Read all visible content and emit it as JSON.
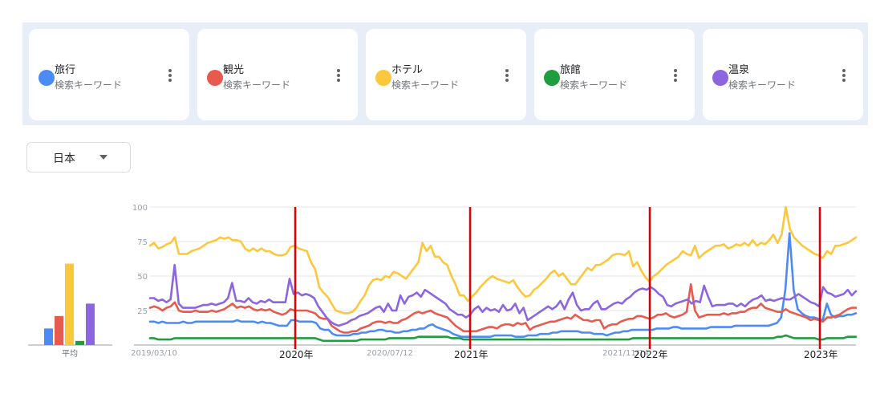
{
  "terms": [
    {
      "name": "旅行",
      "sub": "検索キーワード",
      "color": "#4c8bf5"
    },
    {
      "name": "観光",
      "sub": "検索キーワード",
      "color": "#e8594e"
    },
    {
      "name": "ホテル",
      "sub": "検索キーワード",
      "color": "#fbc83d"
    },
    {
      "name": "旅館",
      "sub": "検索キーワード",
      "color": "#1f9d3f"
    },
    {
      "name": "温泉",
      "sub": "検索キーワード",
      "color": "#8c65e0"
    }
  ],
  "region": {
    "label": "日本"
  },
  "chart_data": [
    {
      "type": "bar",
      "categories": [
        "旅行",
        "観光",
        "ホテル",
        "旅館",
        "温泉"
      ],
      "values": [
        12,
        21,
        59,
        3,
        30
      ],
      "xlabel": "平均",
      "ylim": [
        0,
        100
      ]
    },
    {
      "type": "line",
      "ylim": [
        0,
        100
      ],
      "yticks": [
        "100",
        "75",
        "50",
        "25"
      ],
      "xtick_labels": [
        "2019/03/10",
        "2020/07/12",
        "2021/11/14"
      ],
      "annotation_labels": [
        "2020年",
        "2021年",
        "2022年",
        "2023年"
      ],
      "annotation_color": "#e00000",
      "grid": true,
      "series": [
        {
          "name": "旅行",
          "color": "#4c8bf5",
          "values": [
            17,
            17,
            16,
            17,
            16,
            16,
            16,
            16,
            17,
            16,
            16,
            17,
            17,
            17,
            17,
            17,
            17,
            17,
            17,
            17,
            17,
            18,
            17,
            17,
            17,
            17,
            16,
            17,
            16,
            16,
            15,
            14,
            14,
            14,
            18,
            18,
            17,
            17,
            17,
            17,
            16,
            12,
            11,
            11,
            8,
            7,
            7,
            7,
            7,
            8,
            8,
            9,
            9,
            10,
            10,
            11,
            11,
            10,
            10,
            9,
            9,
            10,
            10,
            11,
            11,
            12,
            12,
            14,
            15,
            13,
            12,
            11,
            10,
            8,
            7,
            6,
            6,
            6,
            6,
            6,
            6,
            6,
            6,
            7,
            7,
            7,
            7,
            7,
            6,
            6,
            6,
            7,
            7,
            7,
            8,
            8,
            8,
            9,
            9,
            10,
            10,
            10,
            10,
            10,
            9,
            9,
            9,
            8,
            8,
            8,
            7,
            8,
            9,
            9,
            10,
            10,
            11,
            11,
            11,
            11,
            11,
            11,
            12,
            12,
            12,
            12,
            13,
            13,
            12,
            12,
            12,
            12,
            12,
            12,
            12,
            13,
            13,
            13,
            13,
            13,
            13,
            14,
            14,
            14,
            14,
            14,
            14,
            14,
            14,
            14,
            15,
            16,
            20,
            40,
            81,
            40,
            26,
            23,
            21,
            20,
            20,
            19,
            18,
            30,
            22,
            20,
            21,
            21,
            22,
            22,
            23
          ]
        },
        {
          "name": "観光",
          "color": "#e8594e",
          "values": [
            27,
            28,
            27,
            25,
            27,
            28,
            31,
            25,
            24,
            24,
            24,
            25,
            24,
            24,
            24,
            25,
            24,
            25,
            26,
            28,
            30,
            27,
            28,
            27,
            28,
            26,
            25,
            26,
            25,
            26,
            24,
            23,
            22,
            23,
            26,
            25,
            25,
            25,
            25,
            24,
            23,
            20,
            19,
            19,
            14,
            12,
            10,
            9,
            9,
            10,
            10,
            12,
            13,
            14,
            16,
            17,
            17,
            16,
            17,
            16,
            16,
            18,
            19,
            21,
            23,
            24,
            23,
            24,
            25,
            23,
            22,
            21,
            20,
            17,
            14,
            12,
            10,
            10,
            10,
            10,
            11,
            12,
            13,
            13,
            12,
            14,
            15,
            15,
            14,
            16,
            15,
            16,
            11,
            13,
            14,
            15,
            16,
            17,
            17,
            18,
            19,
            20,
            19,
            22,
            20,
            18,
            18,
            17,
            18,
            18,
            12,
            14,
            15,
            15,
            17,
            18,
            19,
            19,
            21,
            21,
            20,
            19,
            20,
            22,
            22,
            23,
            21,
            20,
            21,
            22,
            24,
            44,
            25,
            20,
            21,
            22,
            22,
            22,
            22,
            23,
            22,
            23,
            23,
            24,
            24,
            26,
            27,
            27,
            30,
            27,
            26,
            25,
            24,
            24,
            26,
            24,
            23,
            22,
            21,
            20,
            18,
            19,
            18,
            17,
            20,
            20,
            21,
            22,
            24,
            26,
            27,
            27
          ]
        },
        {
          "name": "ホテル",
          "color": "#fbc83d",
          "values": [
            72,
            74,
            70,
            71,
            73,
            74,
            78,
            66,
            66,
            66,
            68,
            69,
            70,
            72,
            74,
            75,
            76,
            78,
            77,
            78,
            76,
            76,
            75,
            70,
            68,
            70,
            68,
            70,
            68,
            68,
            66,
            65,
            65,
            66,
            71,
            72,
            70,
            69,
            68,
            60,
            55,
            42,
            38,
            35,
            30,
            25,
            24,
            23,
            23,
            24,
            27,
            32,
            36,
            43,
            47,
            48,
            47,
            50,
            49,
            53,
            52,
            50,
            48,
            52,
            56,
            60,
            74,
            68,
            72,
            64,
            64,
            60,
            58,
            50,
            44,
            36,
            36,
            32,
            35,
            38,
            42,
            45,
            48,
            50,
            48,
            47,
            46,
            45,
            47,
            42,
            38,
            35,
            36,
            40,
            42,
            45,
            48,
            52,
            54,
            50,
            52,
            48,
            44,
            44,
            48,
            52,
            56,
            54,
            58,
            58,
            60,
            62,
            65,
            66,
            66,
            65,
            68,
            57,
            60,
            54,
            49,
            46,
            50,
            52,
            55,
            58,
            60,
            62,
            64,
            68,
            66,
            65,
            72,
            63,
            66,
            68,
            70,
            72,
            72,
            73,
            70,
            71,
            73,
            72,
            74,
            72,
            76,
            72,
            74,
            73,
            76,
            80,
            74,
            80,
            100,
            84,
            78,
            75,
            72,
            70,
            68,
            66,
            65,
            63,
            68,
            66,
            72,
            72,
            73,
            74,
            76,
            78
          ]
        },
        {
          "name": "旅館",
          "color": "#1f9d3f",
          "values": [
            5,
            5,
            4,
            4,
            4,
            4,
            5,
            5,
            5,
            5,
            5,
            5,
            5,
            5,
            5,
            5,
            5,
            5,
            5,
            5,
            5,
            5,
            5,
            5,
            5,
            5,
            5,
            5,
            5,
            5,
            5,
            5,
            5,
            5,
            5,
            5,
            5,
            5,
            5,
            5,
            5,
            4,
            3,
            3,
            3,
            3,
            3,
            3,
            3,
            3,
            3,
            4,
            4,
            4,
            4,
            4,
            4,
            4,
            5,
            5,
            5,
            5,
            5,
            5,
            5,
            6,
            6,
            6,
            6,
            6,
            6,
            6,
            6,
            5,
            5,
            5,
            4,
            4,
            4,
            4,
            4,
            4,
            4,
            4,
            4,
            4,
            4,
            4,
            4,
            4,
            4,
            4,
            4,
            4,
            4,
            4,
            4,
            4,
            4,
            4,
            4,
            4,
            4,
            4,
            4,
            4,
            4,
            4,
            4,
            4,
            4,
            4,
            4,
            4,
            4,
            4,
            4,
            5,
            5,
            5,
            5,
            5,
            5,
            5,
            5,
            5,
            5,
            5,
            5,
            5,
            5,
            5,
            5,
            5,
            5,
            5,
            5,
            5,
            5,
            5,
            5,
            5,
            5,
            5,
            5,
            5,
            5,
            5,
            5,
            5,
            5,
            5,
            6,
            6,
            7,
            6,
            5,
            5,
            5,
            5,
            5,
            5,
            4,
            4,
            5,
            5,
            5,
            5,
            5,
            6,
            6,
            6
          ]
        },
        {
          "name": "温泉",
          "color": "#8c65e0",
          "values": [
            34,
            34,
            32,
            33,
            31,
            33,
            58,
            30,
            27,
            27,
            27,
            27,
            28,
            29,
            29,
            30,
            29,
            30,
            31,
            34,
            45,
            32,
            32,
            31,
            34,
            31,
            30,
            32,
            31,
            33,
            31,
            31,
            31,
            31,
            48,
            37,
            38,
            36,
            37,
            36,
            34,
            28,
            24,
            20,
            17,
            15,
            14,
            15,
            16,
            18,
            19,
            21,
            22,
            23,
            25,
            27,
            28,
            24,
            30,
            25,
            25,
            36,
            30,
            35,
            36,
            38,
            35,
            40,
            38,
            36,
            34,
            32,
            30,
            26,
            24,
            22,
            22,
            20,
            22,
            26,
            28,
            24,
            27,
            25,
            26,
            24,
            29,
            25,
            26,
            30,
            23,
            27,
            18,
            20,
            22,
            24,
            26,
            28,
            26,
            28,
            32,
            26,
            33,
            38,
            29,
            25,
            26,
            26,
            30,
            32,
            26,
            26,
            28,
            30,
            31,
            30,
            33,
            35,
            38,
            40,
            41,
            40,
            42,
            40,
            37,
            35,
            29,
            28,
            30,
            31,
            32,
            33,
            30,
            32,
            31,
            43,
            35,
            28,
            29,
            29,
            29,
            30,
            30,
            28,
            30,
            28,
            31,
            33,
            34,
            36,
            32,
            33,
            32,
            33,
            34,
            33,
            33,
            35,
            37,
            35,
            33,
            31,
            30,
            28,
            42,
            38,
            37,
            35,
            36,
            37,
            40,
            36,
            39
          ]
        }
      ]
    }
  ]
}
